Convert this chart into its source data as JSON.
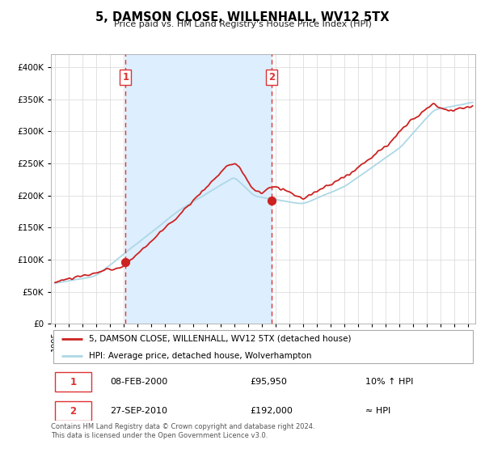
{
  "title": "5, DAMSON CLOSE, WILLENHALL, WV12 5TX",
  "subtitle": "Price paid vs. HM Land Registry's House Price Index (HPI)",
  "ylim": [
    0,
    420000
  ],
  "xlim": [
    1994.7,
    2025.5
  ],
  "yticks": [
    0,
    50000,
    100000,
    150000,
    200000,
    250000,
    300000,
    350000,
    400000
  ],
  "vline1_x": 2000.12,
  "vline2_x": 2010.73,
  "sale1_x": 2000.12,
  "sale1_y": 95950,
  "sale2_x": 2010.73,
  "sale2_y": 192000,
  "hpi_line_color": "#add8e6",
  "price_line_color": "#cc2222",
  "dot_color": "#cc2222",
  "vline_color": "#dd3333",
  "shade_color": "#ddeeff",
  "grid_color": "#dddddd",
  "legend_label1": "5, DAMSON CLOSE, WILLENHALL, WV12 5TX (detached house)",
  "legend_label2": "HPI: Average price, detached house, Wolverhampton",
  "table_row1": [
    "1",
    "08-FEB-2000",
    "£95,950",
    "10% ↑ HPI"
  ],
  "table_row2": [
    "2",
    "27-SEP-2010",
    "£192,000",
    "≈ HPI"
  ],
  "footnote1": "Contains HM Land Registry data © Crown copyright and database right 2024.",
  "footnote2": "This data is licensed under the Open Government Licence v3.0."
}
